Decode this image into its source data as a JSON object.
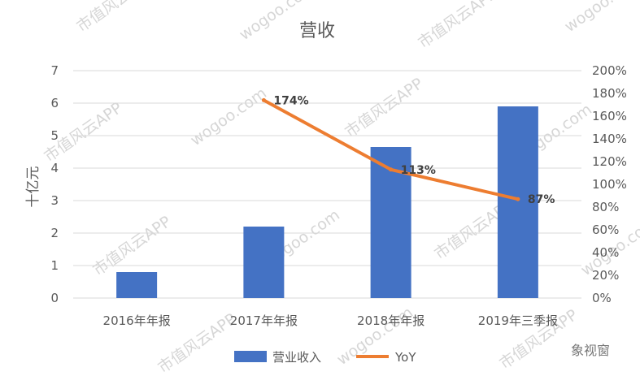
{
  "chart_data": {
    "type": "bar+line",
    "title": "营收",
    "categories": [
      "2016年年报",
      "2017年年报",
      "2018年年报",
      "2019年三季报"
    ],
    "ylabel": "十亿元",
    "ylim": [
      0,
      7
    ],
    "yticks": [
      0,
      1,
      2,
      3,
      4,
      5,
      6,
      7
    ],
    "y2lim": [
      0,
      2.0
    ],
    "y2ticks": [
      "0%",
      "20%",
      "40%",
      "60%",
      "80%",
      "100%",
      "120%",
      "140%",
      "160%",
      "180%",
      "200%"
    ],
    "grid": true,
    "legend_position": "bottom",
    "series": [
      {
        "name": "营业收入",
        "type": "bar",
        "axis": "left",
        "values": [
          0.8,
          2.2,
          4.65,
          5.9
        ],
        "color": "#4472C4"
      },
      {
        "name": "YoY",
        "type": "line",
        "axis": "right",
        "values": [
          null,
          1.74,
          1.13,
          0.87
        ],
        "labels": [
          "",
          "174%",
          "113%",
          "87%"
        ],
        "color": "#ED7D31"
      }
    ]
  },
  "watermarks": {
    "app": "市值风云APP",
    "site": "wogoo.com",
    "corner": "象视窗"
  }
}
